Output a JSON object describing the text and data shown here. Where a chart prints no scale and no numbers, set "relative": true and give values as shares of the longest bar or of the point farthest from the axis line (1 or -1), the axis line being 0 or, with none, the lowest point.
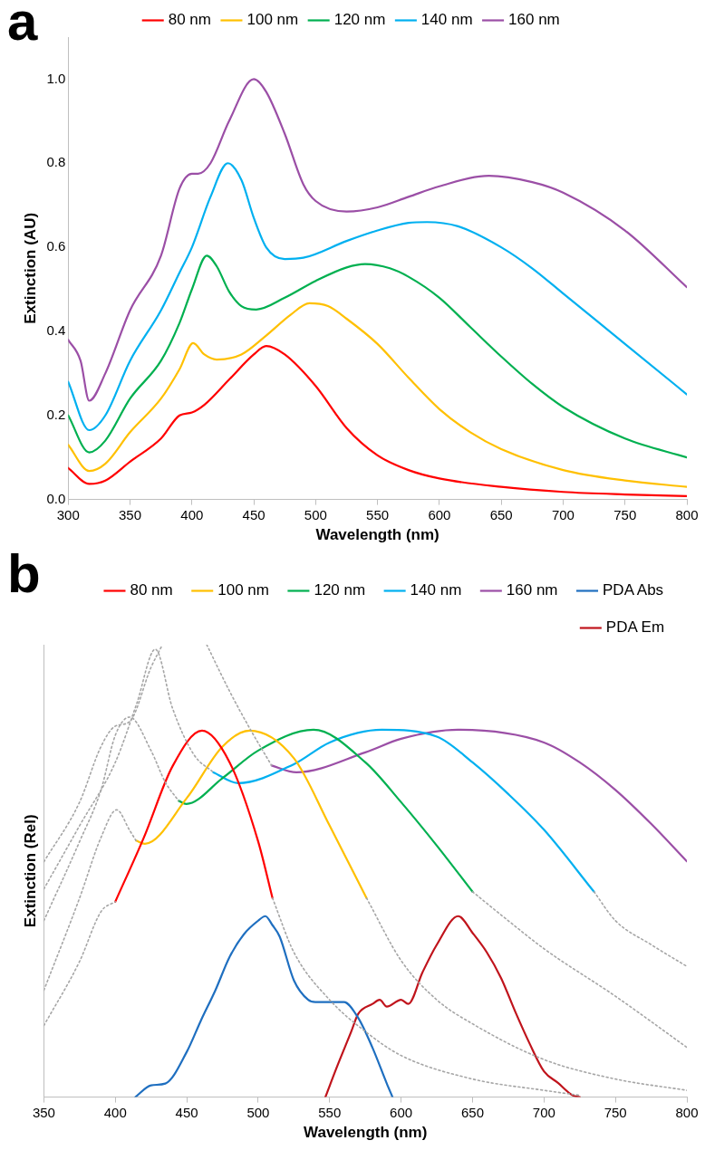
{
  "chart_data": [
    {
      "type": "line",
      "annotations": [
        "a"
      ],
      "xlabel": "Wavelength (nm)",
      "ylabel": "Extinction (AU)",
      "xlim": [
        300,
        800
      ],
      "xticks": [
        300,
        350,
        400,
        450,
        500,
        550,
        600,
        650,
        700,
        750,
        800
      ],
      "ylim": [
        0,
        1.1
      ],
      "yticks": [
        {
          "value": 0,
          "label": "0.0"
        },
        0.2,
        0.4,
        0.6,
        0.8,
        {
          "value": 1,
          "label": "1.0"
        }
      ],
      "legend": "top",
      "marker": "none",
      "grid": false,
      "series": [
        {
          "name": "80 nm",
          "color": "#ff0000",
          "x": [
            300,
            317,
            330,
            350,
            375,
            390,
            400,
            410,
            430,
            450,
            460,
            475,
            500,
            525,
            550,
            575,
            600,
            650,
            700,
            750,
            800
          ],
          "values": [
            0.075,
            0.037,
            0.045,
            0.09,
            0.145,
            0.2,
            0.207,
            0.225,
            0.285,
            0.345,
            0.365,
            0.345,
            0.27,
            0.17,
            0.105,
            0.07,
            0.05,
            0.03,
            0.018,
            0.012,
            0.008
          ]
        },
        {
          "name": "100 nm",
          "color": "#ffc000",
          "x": [
            300,
            317,
            330,
            350,
            375,
            390,
            401,
            410,
            420,
            440,
            460,
            480,
            495,
            510,
            525,
            550,
            575,
            600,
            625,
            650,
            700,
            750,
            800
          ],
          "values": [
            0.13,
            0.068,
            0.085,
            0.16,
            0.24,
            0.31,
            0.372,
            0.345,
            0.333,
            0.345,
            0.39,
            0.44,
            0.467,
            0.46,
            0.43,
            0.37,
            0.29,
            0.215,
            0.16,
            0.12,
            0.07,
            0.045,
            0.03
          ]
        },
        {
          "name": "120 nm",
          "color": "#00b050",
          "x": [
            300,
            317,
            330,
            350,
            375,
            390,
            400,
            412,
            420,
            430,
            440,
            452,
            475,
            500,
            525,
            540,
            560,
            575,
            600,
            625,
            650,
            675,
            700,
            750,
            800
          ],
          "values": [
            0.2,
            0.112,
            0.14,
            0.24,
            0.33,
            0.42,
            0.5,
            0.58,
            0.555,
            0.495,
            0.46,
            0.452,
            0.48,
            0.52,
            0.552,
            0.56,
            0.55,
            0.53,
            0.48,
            0.41,
            0.34,
            0.275,
            0.22,
            0.145,
            0.1
          ]
        },
        {
          "name": "140 nm",
          "color": "#00b0f0",
          "x": [
            300,
            317,
            330,
            350,
            375,
            390,
            400,
            415,
            429,
            440,
            450,
            460,
            475,
            490,
            525,
            550,
            575,
            590,
            615,
            650,
            675,
            700,
            750,
            800
          ],
          "values": [
            0.28,
            0.165,
            0.2,
            0.33,
            0.45,
            0.54,
            0.6,
            0.72,
            0.8,
            0.76,
            0.67,
            0.6,
            0.572,
            0.575,
            0.615,
            0.64,
            0.658,
            0.66,
            0.65,
            0.6,
            0.55,
            0.49,
            0.37,
            0.25
          ]
        },
        {
          "name": "160 nm",
          "color": "#9b4fa6",
          "x": [
            300,
            310,
            317,
            330,
            350,
            375,
            390,
            400,
            405,
            415,
            430,
            450,
            460,
            475,
            490,
            500,
            525,
            550,
            575,
            600,
            640,
            675,
            700,
            750,
            800
          ],
          "values": [
            0.38,
            0.33,
            0.235,
            0.3,
            0.45,
            0.58,
            0.74,
            0.775,
            0.775,
            0.8,
            0.9,
            1.0,
            0.97,
            0.87,
            0.75,
            0.71,
            0.685,
            0.695,
            0.72,
            0.745,
            0.77,
            0.755,
            0.73,
            0.64,
            0.505
          ]
        }
      ]
    },
    {
      "type": "line",
      "annotations": [
        "b"
      ],
      "relative": true,
      "tick_labels": "x",
      "xlabel": "Wavelength (nm)",
      "ylabel": "Extinction (Rel)",
      "xlim": [
        350,
        800
      ],
      "xticks": [
        350,
        400,
        450,
        500,
        550,
        600,
        650,
        700,
        750,
        800
      ],
      "legend": "top right",
      "marker": "none",
      "grid": false,
      "series": [
        {
          "color": "#a6a6a6",
          "line_style": "dotted",
          "x": [
            350,
            375,
            390,
            400,
            450,
            510,
            525,
            550,
            575,
            600,
            650,
            700,
            725
          ],
          "values": [
            0.158,
            0.3,
            0.41,
            0.432,
            null,
            0.44,
            0.32,
            0.215,
            0.145,
            0.092,
            0.04,
            0.015,
            0.004
          ]
        },
        {
          "color": "#a6a6a6",
          "line_style": "dotted",
          "x": [
            350,
            375,
            390,
            401,
            410,
            414.5,
            500,
            575.8,
            600,
            625,
            650,
            700,
            750,
            800
          ],
          "values": [
            0.236,
            0.44,
            0.574,
            0.635,
            0.59,
            0.567,
            null,
            0.44,
            0.302,
            0.215,
            0.162,
            0.083,
            0.04,
            0.015
          ]
        },
        {
          "color": "#a6a6a6",
          "line_style": "dotted",
          "x": [
            350,
            375,
            390,
            400,
            410,
            425,
            435,
            444.3,
            550,
            650,
            675,
            700,
            750,
            800
          ],
          "values": [
            0.39,
            0.565,
            0.679,
            0.8,
            0.84,
            0.766,
            0.696,
            0.655,
            null,
            0.454,
            0.39,
            0.328,
            0.223,
            0.11
          ]
        },
        {
          "color": "#a6a6a6",
          "line_style": "dotted",
          "x": [
            350,
            375,
            400,
            415,
            428,
            440,
            455,
            468.6,
            600,
            735,
            750,
            775,
            800
          ],
          "values": [
            0.46,
            0.6,
            0.74,
            0.87,
            0.99,
            0.86,
            0.757,
            0.718,
            null,
            0.454,
            0.39,
            0.337,
            0.289
          ]
        },
        {
          "color": "#a6a6a6",
          "line_style": "dotted",
          "x": [
            350,
            375,
            390,
            400,
            410,
            425,
            433,
            450,
            464,
            480,
            495,
            509.4
          ],
          "values": [
            0.52,
            0.652,
            0.775,
            0.82,
            0.83,
            0.95,
            1.0,
            null,
            1.0,
            0.897,
            0.81,
            0.733
          ]
        },
        {
          "name": "80 nm",
          "color": "#ff0000",
          "x": [
            400,
            420,
            440,
            460.7,
            480,
            500,
            510
          ],
          "values": [
            0.432,
            0.574,
            0.731,
            0.81,
            0.74,
            0.565,
            0.44
          ]
        },
        {
          "name": "100 nm",
          "color": "#ffc000",
          "x": [
            414.5,
            420.7,
            450,
            475,
            494,
            525,
            550,
            575.8
          ],
          "values": [
            0.567,
            0.56,
            0.661,
            0.775,
            0.81,
            0.749,
            0.6,
            0.44
          ]
        },
        {
          "name": "120 nm",
          "color": "#00b050",
          "x": [
            444.3,
            449.7,
            475,
            500,
            538.7,
            575,
            600,
            625,
            650
          ],
          "values": [
            0.655,
            0.648,
            0.705,
            0.766,
            0.812,
            0.74,
            0.652,
            0.556,
            0.454
          ]
        },
        {
          "name": "140 nm",
          "color": "#00b0f0",
          "x": [
            468.6,
            485.9,
            525,
            550,
            586.5,
            625,
            650,
            675,
            700,
            735
          ],
          "values": [
            0.718,
            0.694,
            0.736,
            0.784,
            0.812,
            0.797,
            0.74,
            0.67,
            0.591,
            0.454
          ]
        },
        {
          "name": "160 nm",
          "color": "#9b4fa6",
          "x": [
            509.4,
            526.7,
            575,
            600,
            639.9,
            700,
            725,
            750,
            775,
            800
          ],
          "values": [
            0.733,
            0.718,
            0.762,
            0.792,
            0.812,
            0.784,
            0.74,
            0.679,
            0.604,
            0.521
          ]
        },
        {
          "name": "PDA Abs",
          "color": "#1f6fc0",
          "x": [
            414,
            425,
            435,
            450,
            460,
            470,
            480,
            490,
            500,
            505,
            510,
            515,
            525,
            535,
            540,
            550,
            560,
            570,
            580,
            590,
            594
          ],
          "values": [
            0,
            0.026,
            0.03,
            0.1,
            0.17,
            0.236,
            0.31,
            0.36,
            0.39,
            0.4,
            0.38,
            0.355,
            0.258,
            0.215,
            0.21,
            0.21,
            0.21,
            0.175,
            0.109,
            0.03,
            0
          ]
        },
        {
          "name": "PDA Em",
          "color": "#c0141c",
          "x": [
            547,
            555,
            565,
            570,
            580,
            585,
            590,
            600,
            605,
            615,
            625,
            640,
            650,
            660,
            670,
            680,
            690,
            700,
            710,
            720,
            725
          ],
          "values": [
            0,
            0.066,
            0.144,
            0.184,
            0.206,
            0.215,
            0.2,
            0.215,
            0.206,
            0.276,
            0.337,
            0.4,
            0.363,
            0.32,
            0.263,
            0.188,
            0.118,
            0.057,
            0.031,
            0.004,
            0
          ]
        }
      ]
    }
  ]
}
